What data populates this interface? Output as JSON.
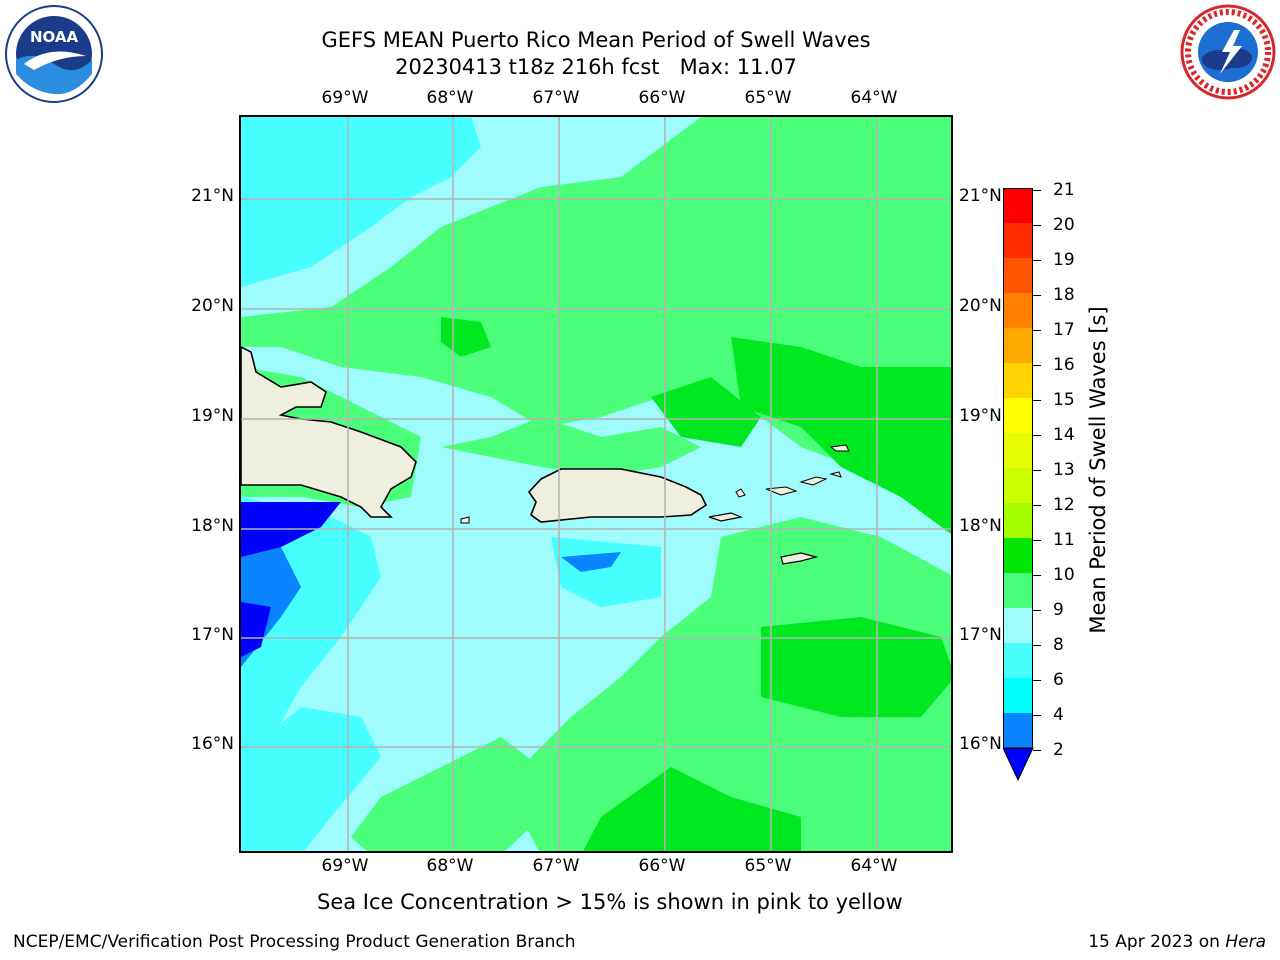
{
  "header": {
    "title_line1": "GEFS MEAN Puerto Rico Mean Period of Swell Waves",
    "title_line2_date": "20230413 t18z 216h fcst",
    "title_line2_max": "Max: 11.07"
  },
  "logos": {
    "left": "noaa-logo",
    "left_text": "NOAA",
    "left_ring_text": "NATIONAL OCEANIC AND ATMOSPHERIC ADMINISTRATION · U.S. DEPARTMENT OF COMMERCE",
    "right": "nws-logo",
    "right_ring_text": "NATIONAL WEATHER SERVICE"
  },
  "map": {
    "lon_labels": [
      "69°W",
      "68°W",
      "67°W",
      "66°W",
      "65°W",
      "64°W"
    ],
    "lat_labels": [
      "21°N",
      "20°N",
      "19°N",
      "18°N",
      "17°N",
      "16°N"
    ],
    "colors": {
      "ocean_dark": "#0000ff",
      "ocean_mid": "#0a84ff",
      "cyan": "#00ffff",
      "aqua": "#47ffff",
      "light_aqua": "#9ffcfc",
      "green_light": "#4cff7a",
      "green": "#00e81f",
      "land": "#efefdf"
    }
  },
  "colorbar": {
    "title": "Mean Period of Swell Waves [s]",
    "ticks": [
      "21",
      "20",
      "19",
      "18",
      "17",
      "16",
      "15",
      "14",
      "13",
      "12",
      "11",
      "10",
      "9",
      "8",
      "6",
      "4",
      "2"
    ],
    "colors": [
      "#ff0000",
      "#ff2a00",
      "#ff5500",
      "#ff8000",
      "#ffaa00",
      "#ffd400",
      "#ffff00",
      "#e6ff00",
      "#ccff00",
      "#a6ff00",
      "#66e600",
      "#00e600",
      "#4cff7a",
      "#9ffcfc",
      "#47ffff",
      "#00ffff",
      "#0a84ff",
      "#0000ff"
    ]
  },
  "caption": "Sea Ice Concentration > 15% is shown in pink to yellow",
  "footer": {
    "left": "NCEP/EMC/Verification Post Processing Product Generation Branch",
    "right_date": "15 Apr 2023 on",
    "right_host": "Hera"
  }
}
